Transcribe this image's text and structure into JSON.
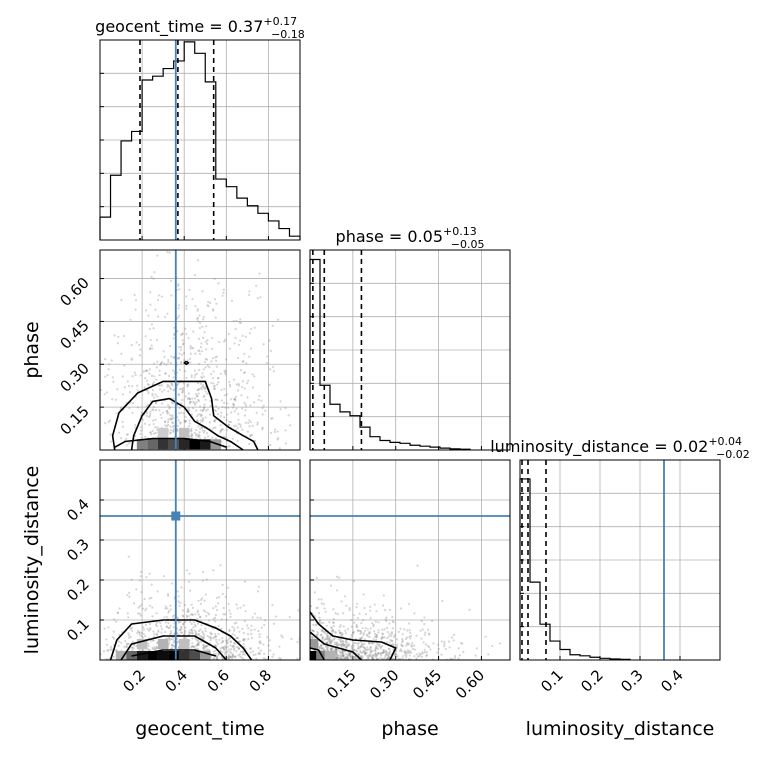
{
  "chart_data": {
    "type": "corner",
    "parameters": [
      "geocent_time",
      "phase",
      "luminosity_distance"
    ],
    "truth": {
      "geocent_time": 0.36,
      "phase": 0.0,
      "luminosity_distance": 0.36
    },
    "truth_color": "#4682b4",
    "line_color": "#000000",
    "grid": true,
    "diagonal": [
      {
        "param": "geocent_time",
        "title_main": "geocent_time = 0.37",
        "title_plus": "+0.17",
        "title_minus": "−0.18",
        "median": 0.37,
        "q_low": 0.19,
        "q_high": 0.54,
        "xlim": [
          0.0,
          0.95
        ],
        "ymax": 1.05,
        "bins": [
          [
            0.0,
            0.05,
            0.12
          ],
          [
            0.05,
            0.1,
            0.34
          ],
          [
            0.1,
            0.15,
            0.52
          ],
          [
            0.15,
            0.2,
            0.57
          ],
          [
            0.2,
            0.25,
            0.84
          ],
          [
            0.25,
            0.3,
            0.86
          ],
          [
            0.3,
            0.35,
            0.9
          ],
          [
            0.35,
            0.4,
            0.94
          ],
          [
            0.4,
            0.45,
            1.04
          ],
          [
            0.45,
            0.5,
            0.98
          ],
          [
            0.5,
            0.55,
            0.83
          ],
          [
            0.55,
            0.6,
            0.32
          ],
          [
            0.6,
            0.65,
            0.28
          ],
          [
            0.65,
            0.7,
            0.22
          ],
          [
            0.7,
            0.75,
            0.18
          ],
          [
            0.75,
            0.8,
            0.14
          ],
          [
            0.8,
            0.85,
            0.1
          ],
          [
            0.85,
            0.9,
            0.06
          ],
          [
            0.9,
            0.95,
            0.02
          ]
        ]
      },
      {
        "param": "phase",
        "title_main": "phase = 0.05",
        "title_plus": "+0.13",
        "title_minus": "−0.05",
        "median": 0.05,
        "q_low": 0.01,
        "q_high": 0.18,
        "xlim": [
          0.0,
          0.7
        ],
        "ymax": 1.05,
        "bins": [
          [
            0.0,
            0.035,
            1.0
          ],
          [
            0.035,
            0.07,
            0.34
          ],
          [
            0.07,
            0.105,
            0.24
          ],
          [
            0.105,
            0.14,
            0.2
          ],
          [
            0.14,
            0.175,
            0.18
          ],
          [
            0.175,
            0.21,
            0.12
          ],
          [
            0.21,
            0.245,
            0.07
          ],
          [
            0.245,
            0.28,
            0.05
          ],
          [
            0.28,
            0.315,
            0.04
          ],
          [
            0.315,
            0.35,
            0.035
          ],
          [
            0.35,
            0.385,
            0.025
          ],
          [
            0.385,
            0.42,
            0.02
          ],
          [
            0.42,
            0.455,
            0.015
          ],
          [
            0.455,
            0.49,
            0.01
          ],
          [
            0.49,
            0.525,
            0.006
          ],
          [
            0.525,
            0.56,
            0.004
          ]
        ]
      },
      {
        "param": "luminosity_distance",
        "title_main": "luminosity_distance = 0.02",
        "title_plus": "+0.04",
        "title_minus": "−0.02",
        "median": 0.02,
        "q_low": 0.005,
        "q_high": 0.065,
        "xlim": [
          0.0,
          0.5
        ],
        "ymax": 0.95,
        "bins": [
          [
            0.0,
            0.025,
            0.86
          ],
          [
            0.025,
            0.05,
            0.37
          ],
          [
            0.05,
            0.075,
            0.17
          ],
          [
            0.075,
            0.1,
            0.09
          ],
          [
            0.1,
            0.125,
            0.05
          ],
          [
            0.125,
            0.15,
            0.025
          ],
          [
            0.15,
            0.175,
            0.02
          ],
          [
            0.175,
            0.2,
            0.013
          ],
          [
            0.2,
            0.225,
            0.008
          ],
          [
            0.225,
            0.25,
            0.005
          ],
          [
            0.25,
            0.275,
            0.003
          ]
        ]
      }
    ],
    "axes": {
      "geocent_time": {
        "label": "geocent_time",
        "ticks": [
          0.2,
          0.4,
          0.6,
          0.8
        ],
        "tick_labels": [
          "0.2",
          "0.4",
          "0.6",
          "0.8"
        ]
      },
      "phase": {
        "label": "phase",
        "ticks": [
          0.15,
          0.3,
          0.45,
          0.6
        ],
        "tick_labels": [
          "0.15",
          "0.30",
          "0.45",
          "0.60"
        ]
      },
      "luminosity_distance": {
        "label": "luminosity_distance",
        "ticks": [
          0.1,
          0.2,
          0.3,
          0.4
        ],
        "tick_labels": [
          "0.1",
          "0.2",
          "0.3",
          "0.4"
        ]
      }
    },
    "panels_2d": [
      {
        "x": "geocent_time",
        "y": "phase",
        "xlim": [
          0.0,
          0.95
        ],
        "ylim": [
          0.0,
          0.7
        ],
        "scatter_center": [
          0.42,
          0.2
        ],
        "scatter_spread": [
          0.2,
          0.16
        ],
        "density_cells": [
          {
            "x": 0.2,
            "y": 0.02,
            "v": 0.5
          },
          {
            "x": 0.25,
            "y": 0.02,
            "v": 0.6
          },
          {
            "x": 0.3,
            "y": 0.02,
            "v": 0.8
          },
          {
            "x": 0.35,
            "y": 0.02,
            "v": 0.7
          },
          {
            "x": 0.4,
            "y": 0.02,
            "v": 0.85
          },
          {
            "x": 0.45,
            "y": 0.02,
            "v": 1.0
          },
          {
            "x": 0.5,
            "y": 0.02,
            "v": 0.9
          },
          {
            "x": 0.55,
            "y": 0.02,
            "v": 0.4
          },
          {
            "x": 0.3,
            "y": 0.06,
            "v": 0.2
          },
          {
            "x": 0.4,
            "y": 0.06,
            "v": 0.25
          }
        ],
        "contours": [
          [
            [
              0.07,
              0.0
            ],
            [
              0.06,
              0.05
            ],
            [
              0.09,
              0.13
            ],
            [
              0.18,
              0.2
            ],
            [
              0.3,
              0.24
            ],
            [
              0.41,
              0.24
            ],
            [
              0.5,
              0.24
            ],
            [
              0.53,
              0.18
            ],
            [
              0.54,
              0.12
            ],
            [
              0.61,
              0.08
            ],
            [
              0.68,
              0.05
            ],
            [
              0.73,
              0.03
            ],
            [
              0.75,
              0.0
            ]
          ],
          [
            [
              0.15,
              0.0
            ],
            [
              0.16,
              0.05
            ],
            [
              0.2,
              0.12
            ],
            [
              0.25,
              0.17
            ],
            [
              0.33,
              0.18
            ],
            [
              0.4,
              0.15
            ],
            [
              0.45,
              0.1
            ],
            [
              0.5,
              0.08
            ],
            [
              0.56,
              0.05
            ],
            [
              0.62,
              0.03
            ],
            [
              0.66,
              0.01
            ],
            [
              0.68,
              0.0
            ]
          ],
          [
            [
              0.07,
              0.01
            ],
            [
              0.12,
              0.03
            ],
            [
              0.25,
              0.04
            ],
            [
              0.4,
              0.04
            ],
            [
              0.52,
              0.03
            ],
            [
              0.6,
              0.01
            ]
          ],
          [
            [
              0.41,
              0.31
            ],
            [
              0.42,
              0.305
            ],
            [
              0.41,
              0.3
            ],
            [
              0.4,
              0.305
            ],
            [
              0.41,
              0.31
            ]
          ]
        ],
        "truth_v": 0.36,
        "truth_h": null
      },
      {
        "x": "geocent_time",
        "y": "luminosity_distance",
        "xlim": [
          0.0,
          0.95
        ],
        "ylim": [
          0.0,
          0.5
        ],
        "scatter_center": [
          0.4,
          0.06
        ],
        "scatter_spread": [
          0.2,
          0.07
        ],
        "density_cells": [
          {
            "x": 0.1,
            "y": 0.01,
            "v": 0.3
          },
          {
            "x": 0.15,
            "y": 0.01,
            "v": 0.6
          },
          {
            "x": 0.2,
            "y": 0.01,
            "v": 0.9
          },
          {
            "x": 0.25,
            "y": 0.01,
            "v": 1.0
          },
          {
            "x": 0.3,
            "y": 0.01,
            "v": 0.95
          },
          {
            "x": 0.35,
            "y": 0.01,
            "v": 1.0
          },
          {
            "x": 0.4,
            "y": 0.01,
            "v": 0.8
          },
          {
            "x": 0.45,
            "y": 0.01,
            "v": 0.7
          },
          {
            "x": 0.5,
            "y": 0.01,
            "v": 0.4
          },
          {
            "x": 0.2,
            "y": 0.04,
            "v": 0.25
          },
          {
            "x": 0.3,
            "y": 0.04,
            "v": 0.3
          },
          {
            "x": 0.4,
            "y": 0.04,
            "v": 0.25
          }
        ],
        "contours": [
          [
            [
              0.05,
              0.0
            ],
            [
              0.08,
              0.05
            ],
            [
              0.15,
              0.09
            ],
            [
              0.3,
              0.1
            ],
            [
              0.45,
              0.1
            ],
            [
              0.55,
              0.08
            ],
            [
              0.62,
              0.06
            ],
            [
              0.68,
              0.03
            ],
            [
              0.72,
              0.0
            ]
          ],
          [
            [
              0.1,
              0.0
            ],
            [
              0.15,
              0.04
            ],
            [
              0.3,
              0.06
            ],
            [
              0.45,
              0.06
            ],
            [
              0.55,
              0.03
            ],
            [
              0.6,
              0.0
            ]
          ],
          [
            [
              0.15,
              0.01
            ],
            [
              0.3,
              0.025
            ],
            [
              0.45,
              0.025
            ],
            [
              0.55,
              0.01
            ]
          ]
        ],
        "truth_v": 0.36,
        "truth_h": 0.36,
        "truth_point": [
          0.36,
          0.36
        ]
      },
      {
        "x": "phase",
        "y": "luminosity_distance",
        "xlim": [
          0.0,
          0.7
        ],
        "ylim": [
          0.0,
          0.5
        ],
        "scatter_center": [
          0.12,
          0.04
        ],
        "scatter_spread": [
          0.14,
          0.05
        ],
        "density_cells": [
          {
            "x": 0.01,
            "y": 0.01,
            "v": 1.0
          },
          {
            "x": 0.04,
            "y": 0.01,
            "v": 0.5
          },
          {
            "x": 0.01,
            "y": 0.04,
            "v": 0.4
          },
          {
            "x": 0.07,
            "y": 0.01,
            "v": 0.3
          }
        ],
        "contours": [
          [
            [
              0.0,
              0.12
            ],
            [
              0.03,
              0.09
            ],
            [
              0.08,
              0.06
            ],
            [
              0.15,
              0.05
            ],
            [
              0.25,
              0.045
            ],
            [
              0.3,
              0.03
            ],
            [
              0.28,
              0.0
            ]
          ],
          [
            [
              0.0,
              0.07
            ],
            [
              0.05,
              0.04
            ],
            [
              0.1,
              0.03
            ],
            [
              0.15,
              0.02
            ],
            [
              0.18,
              0.0
            ]
          ],
          [
            [
              0.0,
              0.03
            ],
            [
              0.03,
              0.025
            ],
            [
              0.05,
              0.0
            ]
          ]
        ],
        "truth_v": null,
        "truth_h": 0.36
      }
    ]
  }
}
